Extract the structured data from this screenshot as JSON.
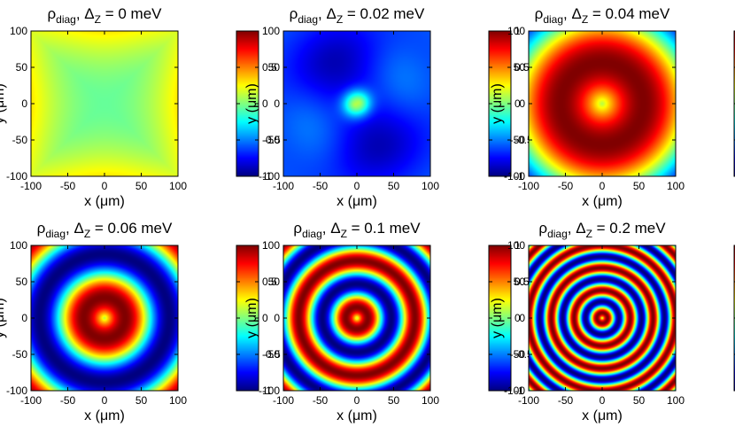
{
  "chart_data": [
    {
      "type": "heatmap",
      "title_symbol": "ρ",
      "title_subscript": "diag",
      "title_delta": "Δ",
      "title_delta_subscript": "Z",
      "title_value": "0",
      "title_unit": "meV",
      "xlabel": "x (μm)",
      "ylabel": "y (μm)",
      "xlim": [
        -100,
        100
      ],
      "ylim": [
        -100,
        100
      ],
      "xticks": [
        -100,
        -50,
        0,
        50,
        100
      ],
      "yticks": [
        100,
        50,
        0,
        -50,
        -100
      ],
      "colorbar": {
        "range": [
          -1,
          1
        ],
        "ticks": [
          1,
          0.5,
          0,
          -0.5,
          -1
        ],
        "colormap": "jet"
      },
      "pattern": {
        "kind": "near-uniform",
        "value_center": -0.05,
        "value_corners": 0.3
      }
    },
    {
      "type": "heatmap",
      "title_symbol": "ρ",
      "title_subscript": "diag",
      "title_delta": "Δ",
      "title_delta_subscript": "Z",
      "title_value": "0.02",
      "title_unit": "meV",
      "xlabel": "x (μm)",
      "ylabel": "y (μm)",
      "xlim": [
        -100,
        100
      ],
      "ylim": [
        -100,
        100
      ],
      "xticks": [
        -100,
        -50,
        0,
        50,
        100
      ],
      "yticks": [
        100,
        50,
        0,
        -50,
        -100
      ],
      "colorbar": {
        "range": [
          -1,
          1
        ],
        "ticks": [
          1,
          0.5,
          0,
          -0.5,
          -1
        ],
        "colormap": "jet"
      },
      "pattern": {
        "kind": "central-peak",
        "value_center": 0.1,
        "value_background": -0.75
      }
    },
    {
      "type": "heatmap",
      "title_symbol": "ρ",
      "title_subscript": "diag",
      "title_delta": "Δ",
      "title_delta_subscript": "Z",
      "title_value": "0.04",
      "title_unit": "meV",
      "xlabel": "x (μm)",
      "ylabel": "y (μm)",
      "xlim": [
        -100,
        100
      ],
      "ylim": [
        -100,
        100
      ],
      "xticks": [
        -100,
        -50,
        0,
        50,
        100
      ],
      "yticks": [
        100,
        50,
        0,
        -50,
        -100
      ],
      "colorbar": {
        "range": [
          -1,
          1
        ],
        "ticks": [
          1,
          0.5,
          0,
          -0.5,
          -1
        ],
        "colormap": "jet"
      },
      "pattern": {
        "kind": "concentric-rings",
        "ring_period_um": 240,
        "value_center": 0.1
      }
    },
    {
      "type": "heatmap",
      "title_symbol": "ρ",
      "title_subscript": "diag",
      "title_delta": "Δ",
      "title_delta_subscript": "Z",
      "title_value": "0.06",
      "title_unit": "meV",
      "xlabel": "x (μm)",
      "ylabel": "y (μm)",
      "xlim": [
        -100,
        100
      ],
      "ylim": [
        -100,
        100
      ],
      "xticks": [
        -100,
        -50,
        0,
        50,
        100
      ],
      "yticks": [
        100,
        50,
        0,
        -50,
        -100
      ],
      "colorbar": {
        "range": [
          -1,
          1
        ],
        "ticks": [
          1,
          0.5,
          0,
          -0.5,
          -1
        ],
        "colormap": "jet"
      },
      "pattern": {
        "kind": "concentric-rings",
        "ring_period_um": 120,
        "value_center": 0.1
      }
    },
    {
      "type": "heatmap",
      "title_symbol": "ρ",
      "title_subscript": "diag",
      "title_delta": "Δ",
      "title_delta_subscript": "Z",
      "title_value": "0.1",
      "title_unit": "meV",
      "xlabel": "x (μm)",
      "ylabel": "y (μm)",
      "xlim": [
        -100,
        100
      ],
      "ylim": [
        -100,
        100
      ],
      "xticks": [
        -100,
        -50,
        0,
        50,
        100
      ],
      "yticks": [
        100,
        50,
        0,
        -50,
        -100
      ],
      "colorbar": {
        "range": [
          -1,
          1
        ],
        "ticks": [
          1,
          0.5,
          0,
          -0.5,
          -1
        ],
        "colormap": "jet"
      },
      "pattern": {
        "kind": "concentric-rings",
        "ring_period_um": 64,
        "value_center": 0.1
      }
    },
    {
      "type": "heatmap",
      "title_symbol": "ρ",
      "title_subscript": "diag",
      "title_delta": "Δ",
      "title_delta_subscript": "Z",
      "title_value": "0.2",
      "title_unit": "meV",
      "xlabel": "x (μm)",
      "ylabel": "y (μm)",
      "xlim": [
        -100,
        100
      ],
      "ylim": [
        -100,
        100
      ],
      "xticks": [
        -100,
        -50,
        0,
        50,
        100
      ],
      "yticks": [
        100,
        50,
        0,
        -50,
        -100
      ],
      "colorbar": {
        "range": [
          -1,
          1
        ],
        "ticks": [
          1,
          0.5,
          0,
          -0.5,
          -1
        ],
        "colormap": "jet"
      },
      "pattern": {
        "kind": "concentric-rings",
        "ring_period_um": 31,
        "value_center": 0.1
      }
    }
  ]
}
